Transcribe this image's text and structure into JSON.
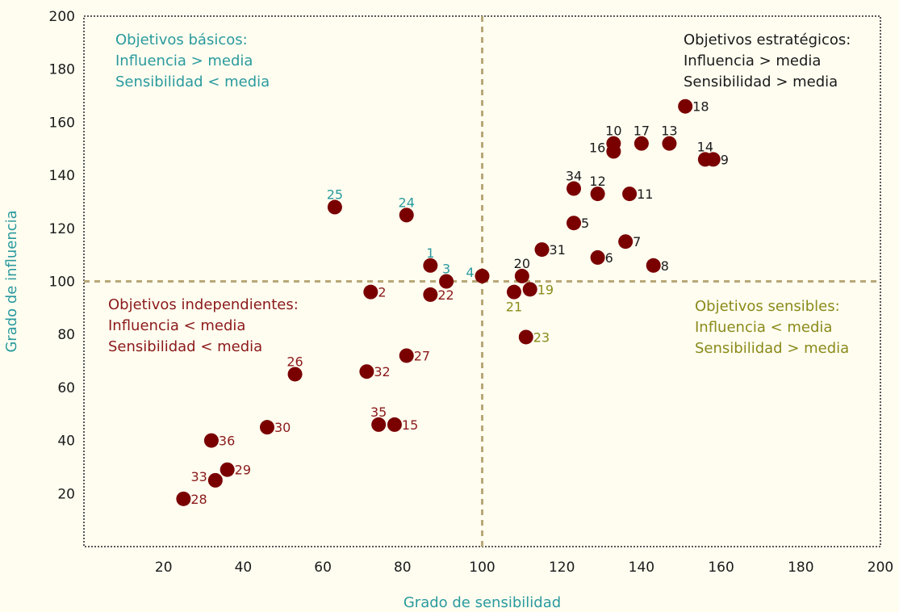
{
  "chart_data": {
    "type": "scatter",
    "title": "",
    "xlabel": "Grado de sensibilidad",
    "ylabel": "Grado de influencia",
    "xlim": [
      0,
      200
    ],
    "ylim": [
      0,
      200
    ],
    "xticks": [
      20,
      40,
      60,
      80,
      100,
      120,
      140,
      160,
      180,
      200
    ],
    "yticks": [
      20,
      40,
      60,
      80,
      100,
      120,
      140,
      160,
      180,
      200
    ],
    "mean_lines": {
      "x": 100,
      "y": 100,
      "style": "dashed"
    },
    "grid": false,
    "colors": {
      "background": "#fffdf0",
      "point": "#7a0000",
      "mean_line": "#b8a878",
      "basicos": "#2a9a9e",
      "estrategicos": "#1a1a1a",
      "independientes": "#8b1a1a",
      "sensibles": "#8a8a1a"
    },
    "quadrants": [
      {
        "key": "basicos",
        "lines": [
          "Objetivos básicos:",
          "Influencia > media",
          "Sensibilidad < media"
        ],
        "position": "top-left"
      },
      {
        "key": "estrategicos",
        "lines": [
          "Objetivos estratégicos:",
          "Influencia > media",
          "Sensibilidad > media"
        ],
        "position": "top-right"
      },
      {
        "key": "independientes",
        "lines": [
          "Objetivos independientes:",
          "Influencia < media",
          "Sensibilidad < media"
        ],
        "position": "bottom-left"
      },
      {
        "key": "sensibles",
        "lines": [
          "Objetivos sensibles:",
          "Influencia < media",
          "Sensibilidad > media"
        ],
        "position": "bottom-right"
      }
    ],
    "points": [
      {
        "label": "1",
        "x": 87,
        "y": 106,
        "group": "basicos",
        "label_pos": "above"
      },
      {
        "label": "2",
        "x": 72,
        "y": 96,
        "group": "independientes",
        "label_pos": "right"
      },
      {
        "label": "3",
        "x": 91,
        "y": 100,
        "group": "basicos",
        "label_pos": "above"
      },
      {
        "label": "4",
        "x": 100,
        "y": 102,
        "group": "basicos",
        "label_pos": "left"
      },
      {
        "label": "5",
        "x": 123,
        "y": 122,
        "group": "estrategicos",
        "label_pos": "right"
      },
      {
        "label": "6",
        "x": 129,
        "y": 109,
        "group": "estrategicos",
        "label_pos": "right"
      },
      {
        "label": "7",
        "x": 136,
        "y": 115,
        "group": "estrategicos",
        "label_pos": "right"
      },
      {
        "label": "8",
        "x": 143,
        "y": 106,
        "group": "estrategicos",
        "label_pos": "right"
      },
      {
        "label": "9",
        "x": 158,
        "y": 146,
        "group": "estrategicos",
        "label_pos": "right"
      },
      {
        "label": "10",
        "x": 133,
        "y": 152,
        "group": "estrategicos",
        "label_pos": "above"
      },
      {
        "label": "11",
        "x": 137,
        "y": 133,
        "group": "estrategicos",
        "label_pos": "right"
      },
      {
        "label": "12",
        "x": 129,
        "y": 133,
        "group": "estrategicos",
        "label_pos": "above"
      },
      {
        "label": "13",
        "x": 147,
        "y": 152,
        "group": "estrategicos",
        "label_pos": "above"
      },
      {
        "label": "14",
        "x": 156,
        "y": 146,
        "group": "estrategicos",
        "label_pos": "above"
      },
      {
        "label": "15",
        "x": 78,
        "y": 46,
        "group": "independientes",
        "label_pos": "right"
      },
      {
        "label": "16",
        "x": 133,
        "y": 149,
        "group": "estrategicos",
        "label_pos": "left"
      },
      {
        "label": "17",
        "x": 140,
        "y": 152,
        "group": "estrategicos",
        "label_pos": "above"
      },
      {
        "label": "18",
        "x": 151,
        "y": 166,
        "group": "estrategicos",
        "label_pos": "right"
      },
      {
        "label": "19",
        "x": 112,
        "y": 97,
        "group": "sensibles",
        "label_pos": "right"
      },
      {
        "label": "20",
        "x": 110,
        "y": 102,
        "group": "estrategicos",
        "label_pos": "above"
      },
      {
        "label": "21",
        "x": 108,
        "y": 96,
        "group": "sensibles",
        "label_pos": "below"
      },
      {
        "label": "22",
        "x": 87,
        "y": 95,
        "group": "independientes",
        "label_pos": "right"
      },
      {
        "label": "23",
        "x": 111,
        "y": 79,
        "group": "sensibles",
        "label_pos": "right"
      },
      {
        "label": "24",
        "x": 81,
        "y": 125,
        "group": "basicos",
        "label_pos": "above"
      },
      {
        "label": "25",
        "x": 63,
        "y": 128,
        "group": "basicos",
        "label_pos": "above"
      },
      {
        "label": "26",
        "x": 53,
        "y": 65,
        "group": "independientes",
        "label_pos": "above"
      },
      {
        "label": "27",
        "x": 81,
        "y": 72,
        "group": "independientes",
        "label_pos": "right"
      },
      {
        "label": "28",
        "x": 25,
        "y": 18,
        "group": "independientes",
        "label_pos": "right"
      },
      {
        "label": "29",
        "x": 36,
        "y": 29,
        "group": "independientes",
        "label_pos": "right"
      },
      {
        "label": "30",
        "x": 46,
        "y": 45,
        "group": "independientes",
        "label_pos": "right"
      },
      {
        "label": "31",
        "x": 115,
        "y": 112,
        "group": "estrategicos",
        "label_pos": "right"
      },
      {
        "label": "32",
        "x": 71,
        "y": 66,
        "group": "independientes",
        "label_pos": "right"
      },
      {
        "label": "33",
        "x": 33,
        "y": 25,
        "group": "independientes",
        "label_pos": "left"
      },
      {
        "label": "34",
        "x": 123,
        "y": 135,
        "group": "estrategicos",
        "label_pos": "above"
      },
      {
        "label": "35",
        "x": 74,
        "y": 46,
        "group": "independientes",
        "label_pos": "above"
      },
      {
        "label": "36",
        "x": 32,
        "y": 40,
        "group": "independientes",
        "label_pos": "right"
      }
    ]
  }
}
